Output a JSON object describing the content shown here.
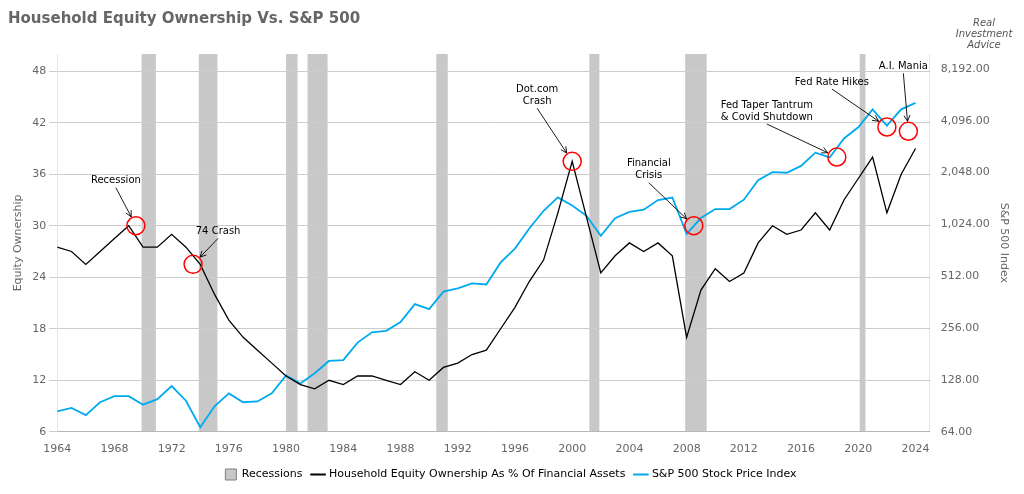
{
  "chart_data": {
    "type": "line",
    "title": "Household Equity Ownership Vs. S&P 500",
    "ylabel": "Equity Ownership",
    "y2label": "S&P 500 Index",
    "x": [
      1964,
      1965,
      1966,
      1967,
      1968,
      1969,
      1970,
      1971,
      1972,
      1973,
      1974,
      1975,
      1976,
      1977,
      1978,
      1979,
      1980,
      1981,
      1982,
      1983,
      1984,
      1985,
      1986,
      1987,
      1988,
      1989,
      1990,
      1991,
      1992,
      1993,
      1994,
      1995,
      1996,
      1997,
      1998,
      1999,
      2000,
      2001,
      2002,
      2003,
      2004,
      2005,
      2006,
      2007,
      2008,
      2009,
      2010,
      2011,
      2012,
      2013,
      2014,
      2015,
      2016,
      2017,
      2018,
      2019,
      2020,
      2021,
      2022,
      2023,
      2024
    ],
    "xlim": [
      1964,
      2025
    ],
    "xticks": [
      1964,
      1968,
      1972,
      1976,
      1980,
      1984,
      1988,
      1992,
      1996,
      2000,
      2004,
      2008,
      2012,
      2016,
      2020,
      2024
    ],
    "ylim": [
      6,
      50
    ],
    "yticks": [
      6,
      12,
      18,
      24,
      30,
      36,
      42,
      48
    ],
    "y2lim": [
      64,
      10000
    ],
    "y2ticks": [
      {
        "value": 64,
        "label": "64.00"
      },
      {
        "value": 128,
        "label": "128.00"
      },
      {
        "value": 256,
        "label": "256.00"
      },
      {
        "value": 512,
        "label": "512.00"
      },
      {
        "value": 1024,
        "label": "1,024.00"
      },
      {
        "value": 2048,
        "label": "2,048.00"
      },
      {
        "value": 4096,
        "label": "4,096.00"
      },
      {
        "value": 8192,
        "label": "8,192.00"
      }
    ],
    "log": "y2",
    "grid": true,
    "legend": "bottom",
    "series": [
      {
        "name": "Household Equity Ownership As % Of Financial Assets",
        "color": "#000000",
        "axis": "y",
        "values": [
          27.5,
          27.0,
          25.5,
          27.0,
          28.5,
          30.0,
          27.5,
          27.5,
          29.0,
          27.5,
          25.5,
          22.0,
          19.0,
          17.0,
          15.5,
          14.0,
          12.5,
          11.5,
          11.0,
          12.0,
          11.5,
          12.5,
          12.5,
          12.0,
          11.5,
          13.0,
          12.0,
          13.5,
          14.0,
          15.0,
          15.5,
          18.0,
          20.5,
          23.5,
          26.0,
          31.5,
          37.5,
          31.0,
          24.5,
          26.5,
          28.0,
          27.0,
          28.0,
          26.5,
          17.0,
          22.5,
          25.0,
          23.5,
          24.5,
          28.0,
          30.0,
          29.0,
          29.5,
          31.5,
          29.5,
          33.0,
          35.5,
          38.0,
          31.5,
          36.0,
          39.0
        ]
      },
      {
        "name": "S&P 500 Stock Price Index",
        "color": "#00aaee",
        "axis": "y2",
        "values": [
          84,
          88,
          80,
          95,
          103,
          103,
          92,
          99,
          118,
          97,
          68,
          90,
          107,
          95,
          96,
          107,
          136,
          122,
          140,
          165,
          167,
          211,
          242,
          247,
          278,
          353,
          330,
          417,
          436,
          466,
          459,
          616,
          741,
          970,
          1229,
          1469,
          1320,
          1148,
          880,
          1112,
          1212,
          1248,
          1418,
          1468,
          903,
          1115,
          1258,
          1258,
          1426,
          1849,
          2059,
          2044,
          2239,
          2673,
          2507,
          3231,
          3756,
          4766,
          3840,
          4770,
          5200
        ]
      }
    ],
    "recessions": {
      "name": "Recessions",
      "color": "#c8c8c8",
      "bands": [
        [
          1969.9,
          1970.9
        ],
        [
          1973.9,
          1975.2
        ],
        [
          1980.0,
          1980.8
        ],
        [
          1981.5,
          1982.9
        ],
        [
          1990.5,
          1991.3
        ],
        [
          2001.2,
          2001.9
        ],
        [
          2007.9,
          2009.4
        ],
        [
          2020.1,
          2020.5
        ]
      ]
    },
    "annotations": [
      {
        "text": "Recession",
        "x": 1969.5,
        "y": 30.0
      },
      {
        "text": "74 Crash",
        "x": 1973.5,
        "y": 25.5
      },
      {
        "text": "Dot.com\nCrash",
        "x": 2000.0,
        "y": 37.5
      },
      {
        "text": "Financial\nCrisis",
        "x": 2008.5,
        "y": 30.0
      },
      {
        "text": "Fed Taper Tantrum\n& Covid Shutdown",
        "x": 2018.5,
        "y": 38.0
      },
      {
        "text": "Fed Rate Hikes",
        "x": 2022.0,
        "y": 41.5
      },
      {
        "text": "A.I. Mania",
        "x": 2023.5,
        "y": 41.0
      }
    ],
    "watermark": "Real\nInvestment\nAdvice"
  }
}
